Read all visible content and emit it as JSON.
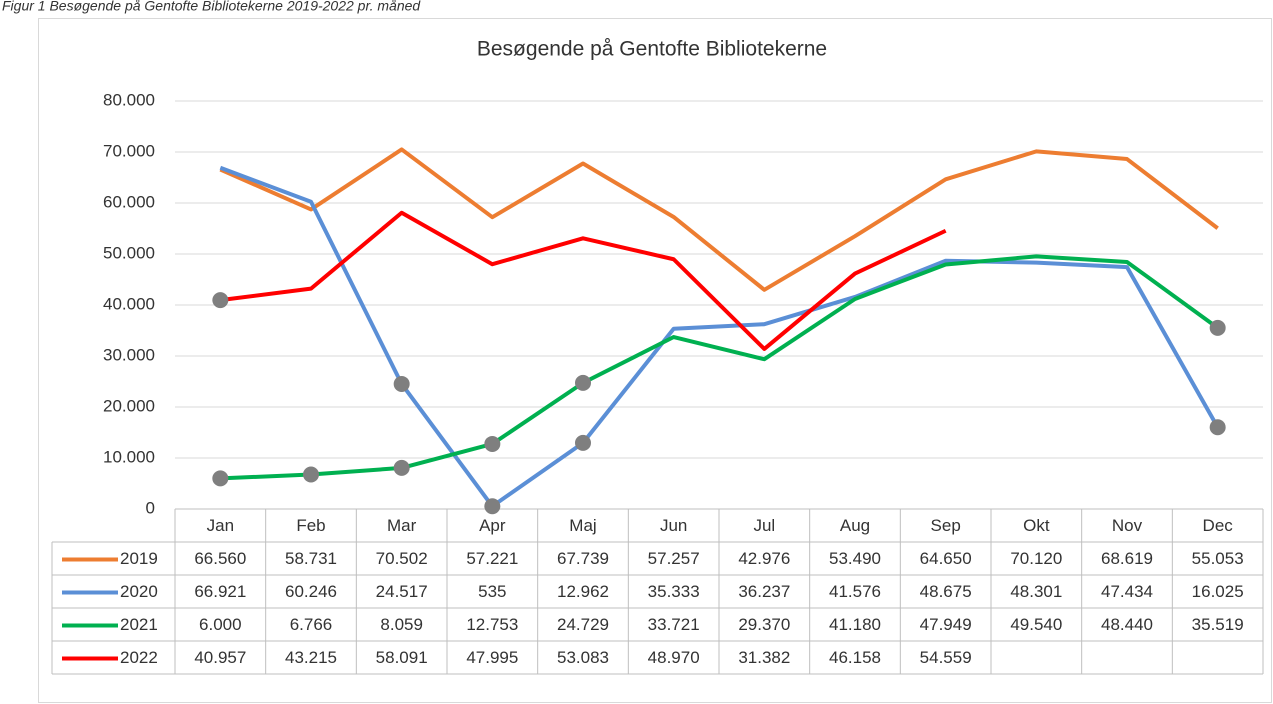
{
  "caption": "Figur 1 Besøgende på Gentofte Bibliotekerne 2019-2022 pr. måned",
  "chart_data": {
    "type": "line",
    "title": "Besøgende på Gentofte Bibliotekerne",
    "categories": [
      "Jan",
      "Feb",
      "Mar",
      "Apr",
      "Maj",
      "Jun",
      "Jul",
      "Aug",
      "Sep",
      "Okt",
      "Nov",
      "Dec"
    ],
    "ylim": [
      0,
      80000
    ],
    "yticks": [
      0,
      {
        "value": 10000,
        "label": "10.000"
      },
      {
        "value": 20000,
        "label": "20.000"
      },
      {
        "value": 30000,
        "label": "30.000"
      },
      {
        "value": 40000,
        "label": "40.000"
      },
      {
        "value": 50000,
        "label": "50.000"
      },
      {
        "value": 60000,
        "label": "60.000"
      },
      {
        "value": 70000,
        "label": "70.000"
      },
      {
        "value": 80000,
        "label": "80.000"
      }
    ],
    "grid": true,
    "highlight_color": "#7f7f7f",
    "series": [
      {
        "name": "2019",
        "color": "#ed7d31",
        "highlighted": [],
        "values": [
          66560,
          58731,
          70502,
          57221,
          67739,
          57257,
          42976,
          53490,
          64650,
          70120,
          68619,
          55053
        ],
        "value_labels": [
          "66.560",
          "58.731",
          "70.502",
          "57.221",
          "67.739",
          "57.257",
          "42.976",
          "53.490",
          "64.650",
          "70.120",
          "68.619",
          "55.053"
        ]
      },
      {
        "name": "2020",
        "color": "#5b8fd6",
        "highlighted": [
          2,
          3,
          4,
          11
        ],
        "values": [
          66921,
          60246,
          24517,
          535,
          12962,
          35333,
          36237,
          41576,
          48675,
          48301,
          47434,
          16025
        ],
        "value_labels": [
          "66.921",
          "60.246",
          "24.517",
          "535",
          "12.962",
          "35.333",
          "36.237",
          "41.576",
          "48.675",
          "48.301",
          "47.434",
          "16.025"
        ]
      },
      {
        "name": "2021",
        "color": "#00b050",
        "highlighted": [
          0,
          1,
          2,
          3,
          4,
          11
        ],
        "values": [
          6000,
          6766,
          8059,
          12753,
          24729,
          33721,
          29370,
          41180,
          47949,
          49540,
          48440,
          35519
        ],
        "value_labels": [
          "6.000",
          "6.766",
          "8.059",
          "12.753",
          "24.729",
          "33.721",
          "29.370",
          "41.180",
          "47.949",
          "49.540",
          "48.440",
          "35.519"
        ]
      },
      {
        "name": "2022",
        "color": "#ff0000",
        "highlighted": [
          0
        ],
        "values": [
          40957,
          43215,
          58091,
          47995,
          53083,
          48970,
          31382,
          46158,
          54559,
          null,
          null,
          null
        ],
        "value_labels": [
          "40.957",
          "43.215",
          "58.091",
          "47.995",
          "53.083",
          "48.970",
          "31.382",
          "46.158",
          "54.559",
          null,
          null,
          null
        ]
      }
    ]
  }
}
